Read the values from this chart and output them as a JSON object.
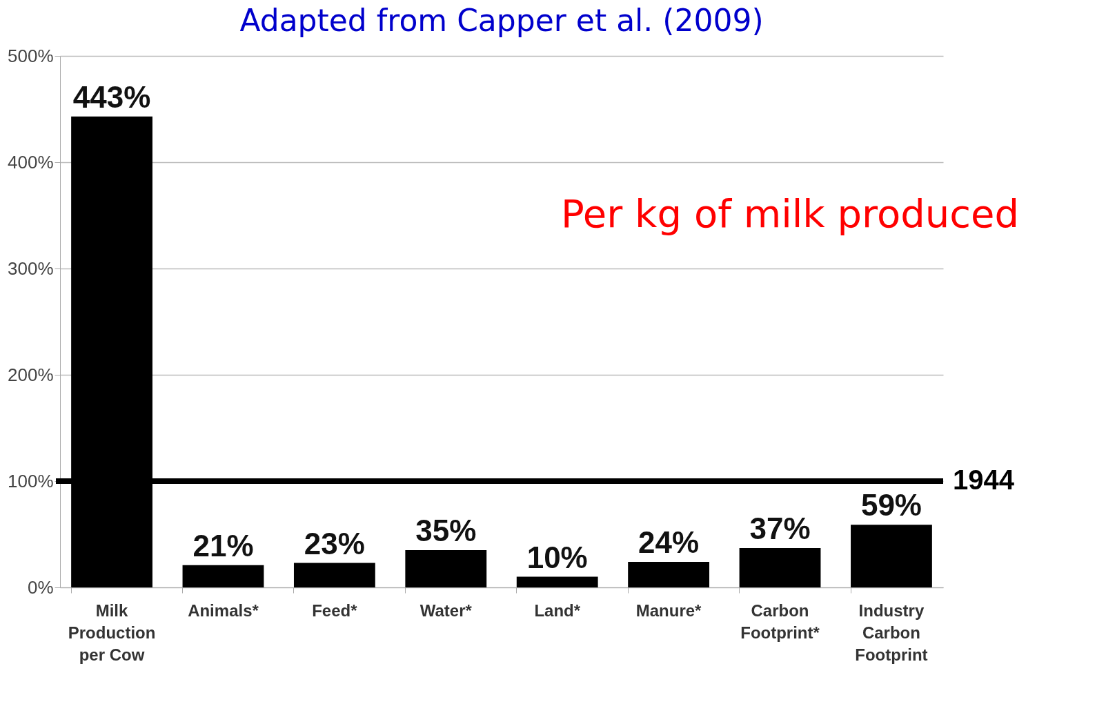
{
  "chart_data": {
    "type": "bar",
    "title": "Adapted from Capper et al. (2009)",
    "categories": [
      "Milk\nProduction\nper Cow",
      "Animals*",
      "Feed*",
      "Water*",
      "Land*",
      "Manure*",
      "Carbon\nFootprint*",
      "Industry\nCarbon\nFootprint"
    ],
    "values": [
      443,
      21,
      23,
      35,
      10,
      24,
      37,
      59
    ],
    "value_labels": [
      "443%",
      "21%",
      "23%",
      "35%",
      "10%",
      "24%",
      "37%",
      "59%"
    ],
    "color": "#000000",
    "ylim": [
      0,
      500
    ],
    "yticks": [
      {
        "value": 0,
        "label": "0%"
      },
      {
        "value": 100,
        "label": "100%"
      },
      {
        "value": 200,
        "label": "200%"
      },
      {
        "value": 300,
        "label": "300%"
      },
      {
        "value": 400,
        "label": "400%"
      },
      {
        "value": 500,
        "label": "500%"
      }
    ],
    "grid": "y",
    "ref_lines": [
      {
        "axis": "y",
        "value": 100,
        "color": "#000000"
      }
    ],
    "annotations": [
      "Per kg of milk produced",
      "1944"
    ]
  }
}
